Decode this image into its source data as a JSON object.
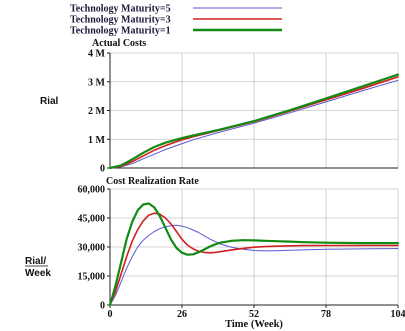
{
  "legend": {
    "entries": [
      {
        "label": "Technology Maturity=5",
        "color": "#5a5ad2"
      },
      {
        "label": "Technology Maturity=3",
        "color": "#d02020"
      },
      {
        "label": "Technology Maturity=1",
        "color": "#138a13"
      }
    ],
    "placement": "top-left"
  },
  "chart_data": [
    {
      "type": "line",
      "title": "Actual Costs",
      "ylabel": "Rial",
      "xlabel": "",
      "xlim": [
        0,
        104
      ],
      "ylim": [
        0,
        4000000
      ],
      "ytick_values": [
        0,
        1000000,
        2000000,
        3000000,
        4000000
      ],
      "ytick_labels": [
        "0",
        "1 M",
        "2 M",
        "3 M",
        "4 M"
      ],
      "grid": true,
      "x": [
        0,
        4,
        8,
        12,
        16,
        20,
        26,
        30,
        39,
        52,
        65,
        78,
        91,
        104
      ],
      "series": [
        {
          "name": "Technology Maturity=5",
          "color": "#5a5ad2",
          "width": 1,
          "values": [
            0,
            40000,
            150000,
            320000,
            480000,
            640000,
            850000,
            980000,
            1230000,
            1560000,
            1920000,
            2300000,
            2680000,
            3050000
          ]
        },
        {
          "name": "Technology Maturity=3",
          "color": "#d02020",
          "width": 1.6,
          "values": [
            0,
            60000,
            220000,
            420000,
            620000,
            780000,
            980000,
            1090000,
            1300000,
            1610000,
            1980000,
            2370000,
            2760000,
            3170000
          ]
        },
        {
          "name": "Technology Maturity=1",
          "color": "#138a13",
          "width": 2.2,
          "values": [
            0,
            90000,
            300000,
            530000,
            730000,
            880000,
            1040000,
            1130000,
            1320000,
            1630000,
            2010000,
            2420000,
            2830000,
            3250000
          ]
        }
      ]
    },
    {
      "type": "line",
      "title": "Cost Realization Rate",
      "ylabel": "Rial/ Week",
      "xlabel": "Time (Week)",
      "xlim": [
        0,
        104
      ],
      "ylim": [
        0,
        60000
      ],
      "ytick_values": [
        0,
        15000,
        30000,
        45000,
        60000
      ],
      "ytick_labels": [
        "0",
        "15,000",
        "30,000",
        "45,000",
        "60,000"
      ],
      "xtick_values": [
        0,
        26,
        52,
        78,
        104
      ],
      "xtick_labels": [
        "0",
        "26",
        "52",
        "78",
        "104"
      ],
      "grid": true,
      "x": [
        0,
        2,
        4,
        6,
        8,
        10,
        12,
        14,
        16,
        18,
        20,
        22,
        24,
        26,
        28,
        30,
        32,
        34,
        36,
        38,
        40,
        44,
        48,
        52,
        56,
        60,
        65,
        70,
        78,
        91,
        104
      ],
      "series": [
        {
          "name": "Technology Maturity=5",
          "color": "#5a5ad2",
          "width": 1,
          "values": [
            0,
            5000,
            12000,
            19000,
            25000,
            30000,
            33500,
            36000,
            38000,
            39500,
            40500,
            41000,
            41200,
            40800,
            40000,
            38800,
            37500,
            35800,
            34200,
            32800,
            31500,
            29800,
            28800,
            28200,
            28000,
            28100,
            28300,
            28500,
            28800,
            29000,
            29200
          ]
        },
        {
          "name": "Technology Maturity=3",
          "color": "#d02020",
          "width": 1.6,
          "values": [
            0,
            7000,
            16000,
            25000,
            33000,
            39000,
            43500,
            46500,
            47500,
            47000,
            45000,
            42000,
            38000,
            34000,
            31000,
            29000,
            27800,
            27200,
            27000,
            27200,
            27600,
            28500,
            29300,
            29900,
            30200,
            30400,
            30600,
            30700,
            30800,
            30800,
            30800
          ]
        },
        {
          "name": "Technology Maturity=1",
          "color": "#138a13",
          "width": 2.2,
          "values": [
            0,
            10000,
            22000,
            34000,
            43000,
            49000,
            52000,
            52500,
            50500,
            46000,
            40000,
            34000,
            29500,
            27000,
            26000,
            26200,
            27300,
            28700,
            30200,
            31400,
            32300,
            33200,
            33500,
            33400,
            33200,
            33000,
            32800,
            32500,
            32200,
            32000,
            32000
          ]
        }
      ]
    }
  ]
}
